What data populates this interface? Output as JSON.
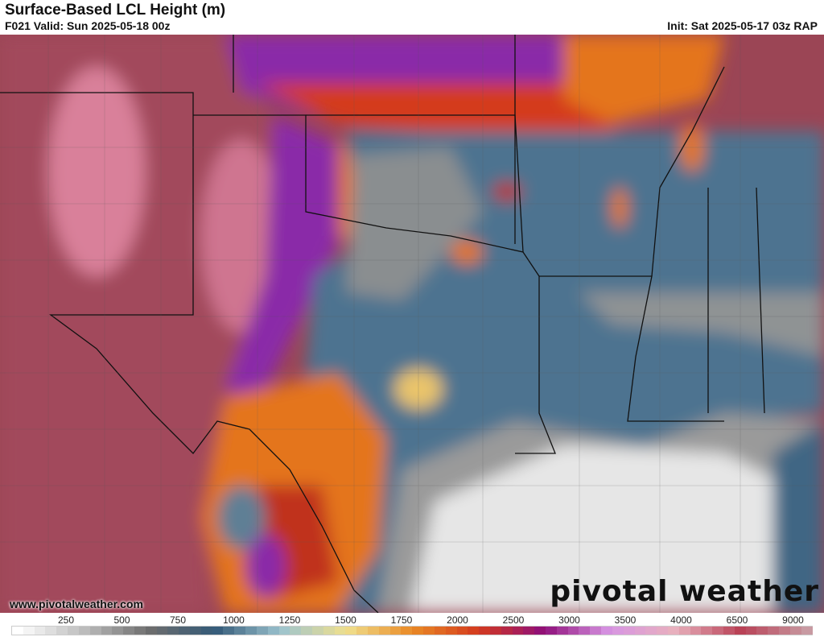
{
  "header": {
    "title": "Surface-Based LCL Height (m)",
    "valid": "F021 Valid: Sun 2025-05-18 00z",
    "init": "Init: Sat 2025-05-17 03z RAP"
  },
  "footer": {
    "url": "www.pivotalweather.com",
    "logo": "pivotal weather"
  },
  "colorbar": {
    "ticks": [
      "250",
      "500",
      "750",
      "1000",
      "1250",
      "1500",
      "1750",
      "2000",
      "2500",
      "3000",
      "3500",
      "4000",
      "6500",
      "9000"
    ],
    "stops": [
      "#ffffff",
      "#bdbdbd",
      "#6e6e6e",
      "#345a78",
      "#9cc3cf",
      "#efe08e",
      "#e98a26",
      "#d43a1e",
      "#8e0f7a",
      "#d795e3",
      "#e8b1bd",
      "#b84055",
      "#c89aa2"
    ]
  },
  "map": {
    "colors": {
      "high": "#9b4555",
      "pink": "#d9809a",
      "purple": "#8a2aa8",
      "orange": "#e4751e",
      "yellow": "#eac46a",
      "blue": "#4d7390",
      "gray": "#8f9394",
      "gulf": "#e8e8e8"
    }
  }
}
